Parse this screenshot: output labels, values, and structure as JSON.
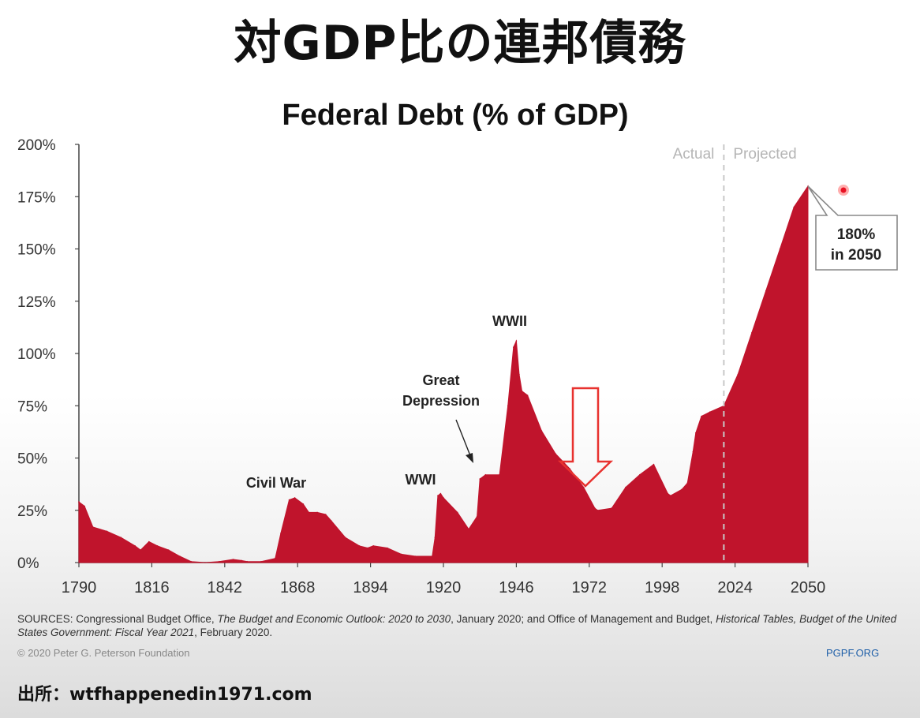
{
  "slide_title": "対GDP比の連邦債務",
  "chart_data": {
    "type": "area",
    "title": "Federal Debt (% of GDP)",
    "xlabel": "",
    "ylabel": "",
    "xlim": [
      1790,
      2050
    ],
    "ylim": [
      0,
      200
    ],
    "x_ticks": [
      "1790",
      "1816",
      "1842",
      "1868",
      "1894",
      "1920",
      "1946",
      "1972",
      "1998",
      "2024",
      "2050"
    ],
    "y_ticks": [
      "0%",
      "25%",
      "50%",
      "75%",
      "100%",
      "125%",
      "150%",
      "175%",
      "200%"
    ],
    "grid": false,
    "color": "#c0142c",
    "regions": {
      "actual_label": "Actual",
      "projected_label": "Projected",
      "divider_year": 2020
    },
    "annotations": {
      "civil_war": "Civil War",
      "wwi": "WWI",
      "great_depression_1": "Great",
      "great_depression_2": "Depression",
      "wwii": "WWII",
      "callout_1": "180%",
      "callout_2": "in 2050"
    },
    "x": [
      1790,
      1792,
      1795,
      1800,
      1805,
      1810,
      1812,
      1815,
      1818,
      1822,
      1826,
      1830,
      1835,
      1840,
      1845,
      1848,
      1850,
      1855,
      1860,
      1862,
      1865,
      1867,
      1870,
      1872,
      1875,
      1878,
      1880,
      1885,
      1890,
      1893,
      1895,
      1900,
      1905,
      1910,
      1916,
      1917,
      1918,
      1919,
      1920,
      1925,
      1929,
      1932,
      1933,
      1935,
      1940,
      1943,
      1945,
      1946,
      1947,
      1948,
      1950,
      1955,
      1960,
      1965,
      1970,
      1974,
      1975,
      1980,
      1985,
      1990,
      1995,
      2000,
      2001,
      2005,
      2007,
      2009,
      2010,
      2012,
      2015,
      2020,
      2025,
      2030,
      2035,
      2040,
      2045,
      2050
    ],
    "values": [
      29,
      27,
      17,
      15,
      12,
      8,
      6,
      10,
      8,
      6,
      3,
      0.5,
      0,
      0.5,
      1.5,
      1,
      0.5,
      0.5,
      2,
      14,
      30,
      31,
      28,
      24,
      24,
      23,
      20,
      12,
      8,
      7,
      8,
      7,
      4,
      3,
      3,
      12,
      32,
      33,
      31,
      24,
      16,
      22,
      40,
      42,
      42,
      75,
      103,
      106,
      90,
      82,
      80,
      63,
      52,
      45,
      36,
      26,
      25,
      26,
      36,
      42,
      47,
      33,
      32,
      35,
      38,
      53,
      62,
      70,
      72,
      75,
      90,
      110,
      130,
      150,
      170,
      180
    ],
    "callout_point": {
      "x": 2050,
      "y": 180
    }
  },
  "footer": {
    "sources_prefix": "SOURCES: Congressional Budget Office, ",
    "sources_title1": "The Budget and Economic Outlook: 2020 to 2030",
    "sources_mid": ", January 2020; and Office of Management and Budget, ",
    "sources_title2": "Historical Tables, Budget of the United States Government: Fiscal Year 2021",
    "sources_suffix": ", February 2020.",
    "copyright": "© 2020 Peter G. Peterson Foundation",
    "site": "PGPF.ORG"
  },
  "credit": "出所：wtfhappenedin1971.com"
}
